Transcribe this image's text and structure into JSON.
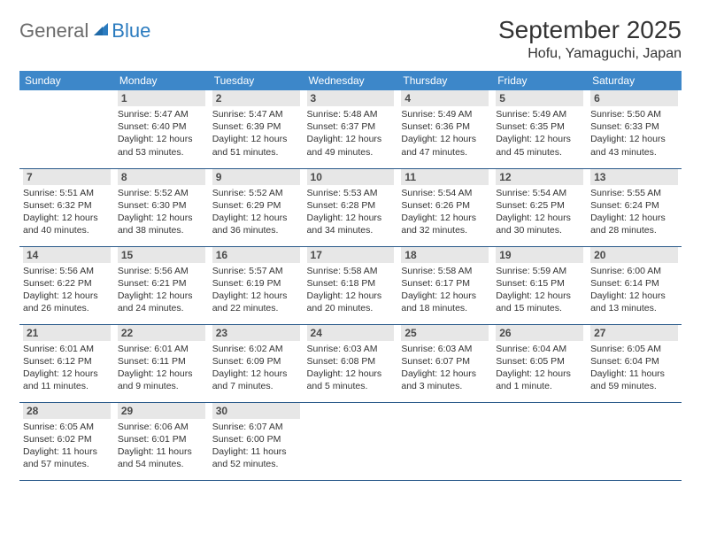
{
  "brand": {
    "part1": "General",
    "part2": "Blue"
  },
  "title": "September 2025",
  "location": "Hofu, Yamaguchi, Japan",
  "colors": {
    "header_bg": "#3d87c9",
    "header_text": "#ffffff",
    "daybar_bg": "#e7e7e7",
    "row_border": "#2a5a8a",
    "logo_gray": "#6b6b6b",
    "logo_blue": "#2b7bbf"
  },
  "weekdays": [
    "Sunday",
    "Monday",
    "Tuesday",
    "Wednesday",
    "Thursday",
    "Friday",
    "Saturday"
  ],
  "weeks": [
    [
      null,
      {
        "d": "1",
        "sr": "5:47 AM",
        "ss": "6:40 PM",
        "dl": "12 hours and 53 minutes."
      },
      {
        "d": "2",
        "sr": "5:47 AM",
        "ss": "6:39 PM",
        "dl": "12 hours and 51 minutes."
      },
      {
        "d": "3",
        "sr": "5:48 AM",
        "ss": "6:37 PM",
        "dl": "12 hours and 49 minutes."
      },
      {
        "d": "4",
        "sr": "5:49 AM",
        "ss": "6:36 PM",
        "dl": "12 hours and 47 minutes."
      },
      {
        "d": "5",
        "sr": "5:49 AM",
        "ss": "6:35 PM",
        "dl": "12 hours and 45 minutes."
      },
      {
        "d": "6",
        "sr": "5:50 AM",
        "ss": "6:33 PM",
        "dl": "12 hours and 43 minutes."
      }
    ],
    [
      {
        "d": "7",
        "sr": "5:51 AM",
        "ss": "6:32 PM",
        "dl": "12 hours and 40 minutes."
      },
      {
        "d": "8",
        "sr": "5:52 AM",
        "ss": "6:30 PM",
        "dl": "12 hours and 38 minutes."
      },
      {
        "d": "9",
        "sr": "5:52 AM",
        "ss": "6:29 PM",
        "dl": "12 hours and 36 minutes."
      },
      {
        "d": "10",
        "sr": "5:53 AM",
        "ss": "6:28 PM",
        "dl": "12 hours and 34 minutes."
      },
      {
        "d": "11",
        "sr": "5:54 AM",
        "ss": "6:26 PM",
        "dl": "12 hours and 32 minutes."
      },
      {
        "d": "12",
        "sr": "5:54 AM",
        "ss": "6:25 PM",
        "dl": "12 hours and 30 minutes."
      },
      {
        "d": "13",
        "sr": "5:55 AM",
        "ss": "6:24 PM",
        "dl": "12 hours and 28 minutes."
      }
    ],
    [
      {
        "d": "14",
        "sr": "5:56 AM",
        "ss": "6:22 PM",
        "dl": "12 hours and 26 minutes."
      },
      {
        "d": "15",
        "sr": "5:56 AM",
        "ss": "6:21 PM",
        "dl": "12 hours and 24 minutes."
      },
      {
        "d": "16",
        "sr": "5:57 AM",
        "ss": "6:19 PM",
        "dl": "12 hours and 22 minutes."
      },
      {
        "d": "17",
        "sr": "5:58 AM",
        "ss": "6:18 PM",
        "dl": "12 hours and 20 minutes."
      },
      {
        "d": "18",
        "sr": "5:58 AM",
        "ss": "6:17 PM",
        "dl": "12 hours and 18 minutes."
      },
      {
        "d": "19",
        "sr": "5:59 AM",
        "ss": "6:15 PM",
        "dl": "12 hours and 15 minutes."
      },
      {
        "d": "20",
        "sr": "6:00 AM",
        "ss": "6:14 PM",
        "dl": "12 hours and 13 minutes."
      }
    ],
    [
      {
        "d": "21",
        "sr": "6:01 AM",
        "ss": "6:12 PM",
        "dl": "12 hours and 11 minutes."
      },
      {
        "d": "22",
        "sr": "6:01 AM",
        "ss": "6:11 PM",
        "dl": "12 hours and 9 minutes."
      },
      {
        "d": "23",
        "sr": "6:02 AM",
        "ss": "6:09 PM",
        "dl": "12 hours and 7 minutes."
      },
      {
        "d": "24",
        "sr": "6:03 AM",
        "ss": "6:08 PM",
        "dl": "12 hours and 5 minutes."
      },
      {
        "d": "25",
        "sr": "6:03 AM",
        "ss": "6:07 PM",
        "dl": "12 hours and 3 minutes."
      },
      {
        "d": "26",
        "sr": "6:04 AM",
        "ss": "6:05 PM",
        "dl": "12 hours and 1 minute."
      },
      {
        "d": "27",
        "sr": "6:05 AM",
        "ss": "6:04 PM",
        "dl": "11 hours and 59 minutes."
      }
    ],
    [
      {
        "d": "28",
        "sr": "6:05 AM",
        "ss": "6:02 PM",
        "dl": "11 hours and 57 minutes."
      },
      {
        "d": "29",
        "sr": "6:06 AM",
        "ss": "6:01 PM",
        "dl": "11 hours and 54 minutes."
      },
      {
        "d": "30",
        "sr": "6:07 AM",
        "ss": "6:00 PM",
        "dl": "11 hours and 52 minutes."
      },
      null,
      null,
      null,
      null
    ]
  ],
  "labels": {
    "sunrise": "Sunrise:",
    "sunset": "Sunset:",
    "daylight": "Daylight:"
  }
}
